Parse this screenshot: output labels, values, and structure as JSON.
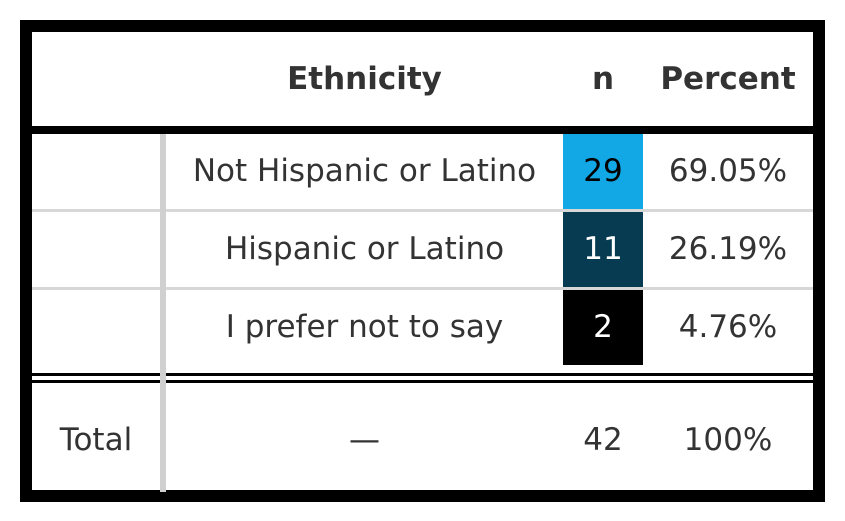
{
  "chart_data": {
    "type": "table",
    "columns": [
      "",
      "Ethnicity",
      "n",
      "Percent"
    ],
    "rows": [
      {
        "label": "",
        "ethnicity": "Not Hispanic or Latino",
        "n": "29",
        "percent": "69.05%",
        "n_value": 29,
        "n_color": "#12a8e6",
        "n_text_color": "#000000"
      },
      {
        "label": "",
        "ethnicity": "Hispanic or Latino",
        "n": "11",
        "percent": "26.19%",
        "n_value": 11,
        "n_color": "#063b52",
        "n_text_color": "#ffffff"
      },
      {
        "label": "",
        "ethnicity": "I prefer not to say",
        "n": "2",
        "percent": "4.76%",
        "n_value": 2,
        "n_color": "#000000",
        "n_text_color": "#ffffff"
      }
    ],
    "total": {
      "label": "Total",
      "ethnicity": "—",
      "n": "42",
      "percent": "100%"
    }
  }
}
